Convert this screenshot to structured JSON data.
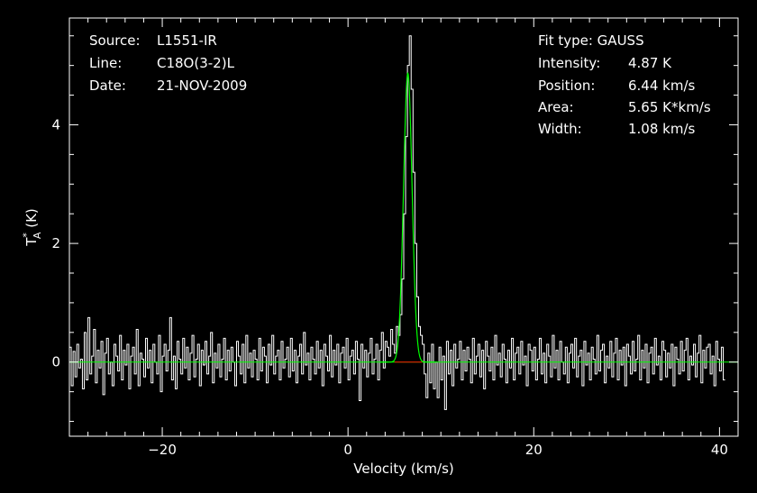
{
  "info_left": [
    {
      "key": "Source:",
      "value": "L1551-IR"
    },
    {
      "key": "Line:",
      "value": "C18O(3-2)L"
    },
    {
      "key": "Date:",
      "value": "21-NOV-2009"
    }
  ],
  "info_right": {
    "fit_type": "Fit type: GAUSS",
    "rows": [
      {
        "key": "Intensity:",
        "value": "4.87 K"
      },
      {
        "key": "Position:",
        "value": "6.44 km/s"
      },
      {
        "key": "Area:",
        "value": "5.65 K*km/s"
      },
      {
        "key": "Width:",
        "value": "1.08 km/s"
      }
    ]
  },
  "colors": {
    "background": "#000000",
    "axes": "#ffffff",
    "spectrum": "#ffffff",
    "fit": "#00ff00",
    "baseline": "#ff0000"
  },
  "chart_data": {
    "type": "line",
    "xlabel": "Velocity (km/s)",
    "ylabel": "T",
    "ylabel_sup": "*",
    "ylabel_sub": "A",
    "ylabel_unit": " (K)",
    "xlim": [
      -30,
      42
    ],
    "ylim": [
      -1.25,
      5.8
    ],
    "xticks": [
      -20,
      0,
      20,
      40
    ],
    "xtick_labels": [
      "−20",
      "0",
      "20",
      "40"
    ],
    "yticks": [
      0,
      2,
      4
    ],
    "ytick_labels": [
      "0",
      "2",
      "4"
    ],
    "grid": false,
    "series": [
      {
        "name": "spectrum",
        "x_start": -29.9,
        "x_step": 0.2,
        "values": [
          0.25,
          -0.4,
          0.18,
          -0.25,
          0.3,
          -0.1,
          0.05,
          -0.45,
          0.5,
          -0.3,
          0.75,
          -0.2,
          0.1,
          0.55,
          -0.35,
          0.2,
          -0.1,
          0.35,
          -0.55,
          0.15,
          0.4,
          -0.2,
          0.0,
          -0.4,
          0.3,
          0.1,
          -0.15,
          0.45,
          -0.3,
          0.2,
          -0.05,
          0.3,
          -0.45,
          0.1,
          0.25,
          -0.2,
          0.55,
          -0.4,
          0.15,
          0.05,
          -0.25,
          0.4,
          -0.1,
          0.2,
          -0.35,
          0.3,
          0.0,
          -0.2,
          0.45,
          -0.5,
          0.1,
          0.3,
          -0.15,
          0.2,
          0.75,
          -0.3,
          0.1,
          -0.45,
          0.35,
          0.05,
          -0.2,
          0.4,
          -0.1,
          0.25,
          -0.3,
          0.15,
          0.45,
          -0.25,
          0.05,
          0.3,
          -0.4,
          0.2,
          -0.05,
          0.35,
          -0.2,
          0.1,
          0.5,
          -0.35,
          0.15,
          -0.1,
          0.3,
          -0.25,
          0.05,
          0.4,
          -0.3,
          0.2,
          -0.15,
          0.25,
          0.0,
          -0.4,
          0.35,
          0.1,
          -0.2,
          0.3,
          -0.35,
          0.45,
          -0.1,
          0.15,
          -0.25,
          0.2,
          0.05,
          -0.3,
          0.4,
          -0.15,
          0.25,
          0.1,
          -0.35,
          0.3,
          -0.05,
          0.45,
          -0.2,
          0.1,
          0.2,
          -0.3,
          0.35,
          -0.1,
          0.05,
          0.25,
          -0.25,
          0.4,
          -0.15,
          0.2,
          -0.35,
          0.1,
          0.3,
          -0.2,
          0.5,
          -0.05,
          0.15,
          -0.3,
          0.25,
          0.05,
          -0.2,
          0.35,
          -0.1,
          0.2,
          -0.4,
          0.3,
          0.1,
          -0.15,
          0.45,
          -0.25,
          0.2,
          -0.05,
          0.3,
          -0.35,
          0.15,
          0.25,
          -0.1,
          0.4,
          -0.3,
          0.1,
          0.2,
          -0.2,
          0.35,
          0.05,
          -0.65,
          0.3,
          -0.1,
          0.2,
          -0.25,
          0.15,
          0.4,
          -0.2,
          0.05,
          0.3,
          -0.3,
          0.2,
          0.5,
          -0.1,
          0.35,
          0.25,
          0.1,
          0.55,
          0.3,
          0.15,
          0.6,
          0.45,
          0.8,
          1.4,
          2.5,
          3.8,
          5.0,
          5.5,
          4.6,
          3.2,
          2.0,
          1.1,
          0.6,
          0.45,
          0.3,
          -0.2,
          -0.6,
          0.15,
          -0.35,
          0.3,
          -0.45,
          0.0,
          -0.6,
          0.25,
          -0.3,
          0.1,
          -0.8,
          0.35,
          -0.2,
          0.2,
          -0.4,
          0.3,
          -0.1,
          0.05,
          0.35,
          -0.3,
          0.2,
          -0.15,
          0.25,
          0.05,
          -0.35,
          0.4,
          -0.2,
          0.1,
          0.3,
          -0.25,
          0.2,
          -0.45,
          0.35,
          0.1,
          -0.15,
          0.25,
          -0.3,
          0.45,
          -0.05,
          0.15,
          -0.25,
          0.3,
          0.05,
          -0.35,
          0.2,
          -0.1,
          0.4,
          -0.3,
          0.15,
          0.25,
          -0.2,
          0.35,
          -0.05,
          0.1,
          -0.4,
          0.3,
          0.2,
          -0.15,
          0.25,
          -0.3,
          0.05,
          0.4,
          -0.2,
          0.15,
          -0.35,
          0.3,
          0.1,
          -0.25,
          0.45,
          -0.1,
          0.2,
          -0.3,
          0.35,
          0.0,
          -0.2,
          0.25,
          -0.35,
          0.15,
          0.3,
          -0.1,
          0.4,
          -0.25,
          0.1,
          0.2,
          -0.4,
          0.35,
          -0.05,
          0.15,
          -0.3,
          0.25,
          0.05,
          -0.2,
          0.45,
          -0.15,
          0.2,
          0.3,
          -0.35,
          0.1,
          -0.1,
          0.35,
          -0.25,
          0.15,
          0.4,
          -0.3,
          0.2,
          -0.05,
          0.25,
          -0.4,
          0.3,
          0.1,
          -0.2,
          0.35,
          -0.15,
          0.05,
          0.45,
          -0.3,
          0.2,
          -0.1,
          0.3,
          -0.35,
          0.15,
          0.25,
          -0.2,
          0.4,
          -0.05,
          0.1,
          -0.3,
          0.35,
          0.2,
          -0.25,
          0.15,
          -0.1,
          0.3,
          -0.4,
          0.25,
          0.05,
          -0.2,
          0.35,
          -0.15,
          0.2,
          0.4,
          -0.3,
          0.1,
          -0.05,
          0.3,
          -0.25,
          0.15,
          0.45,
          -0.35,
          0.2,
          -0.1,
          0.25,
          0.3,
          -0.2,
          0.1,
          -0.4,
          0.35,
          0.05,
          -0.15,
          0.25,
          -0.3
        ]
      },
      {
        "name": "gaussian fit",
        "amplitude": 4.87,
        "center": 6.44,
        "fwhm": 1.08
      }
    ],
    "baseline_range": [
      5.0,
      8.0
    ]
  }
}
